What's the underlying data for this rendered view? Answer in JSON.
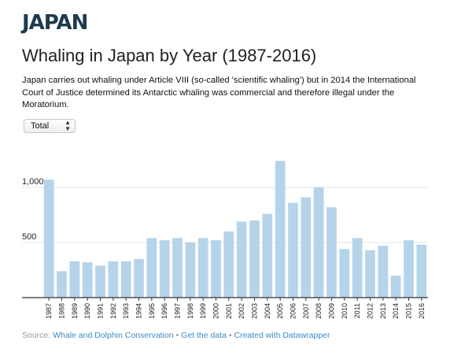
{
  "header": {
    "logo_text": "JAPAN"
  },
  "title": "Whaling in Japan by Year (1987-2016)",
  "intro": "Japan carries out whaling under Article VIII (so-called 'scientific whaling') but in 2014 the International Court of Justice determined its Antarctic whaling was commercial and therefore illegal under the Moratorium.",
  "selector": {
    "value": "Total"
  },
  "colors": {
    "bar": "#b5d4ea",
    "grid": "#e6e6e6",
    "axis": "#333333",
    "link": "#3a8cc6"
  },
  "chart_data": {
    "type": "bar",
    "categories": [
      "1987",
      "1988",
      "1989",
      "1990",
      "1991",
      "1992",
      "1993",
      "1994",
      "1995",
      "1996",
      "1997",
      "1998",
      "1999",
      "2000",
      "2001",
      "2002",
      "2003",
      "2004",
      "2005",
      "2006",
      "2007",
      "2008",
      "2009",
      "2010",
      "2011",
      "2012",
      "2013",
      "2014",
      "2015",
      "2016"
    ],
    "values": [
      1070,
      240,
      330,
      320,
      290,
      330,
      330,
      350,
      540,
      520,
      540,
      500,
      540,
      520,
      600,
      690,
      700,
      760,
      1240,
      860,
      910,
      1000,
      820,
      440,
      540,
      430,
      470,
      200,
      520,
      480
    ],
    "ylim": [
      0,
      1300
    ],
    "yticks": [
      500,
      1000
    ],
    "ytick_labels": [
      "500",
      "1,000"
    ],
    "grid": true,
    "legend": "none"
  },
  "footer": {
    "source_prefix": "Source:",
    "source_link": "Whale and Dolphin Conservation",
    "sep1": "•",
    "data_link": "Get the data",
    "sep2": "•",
    "created_link": "Created with Datawrapper"
  }
}
